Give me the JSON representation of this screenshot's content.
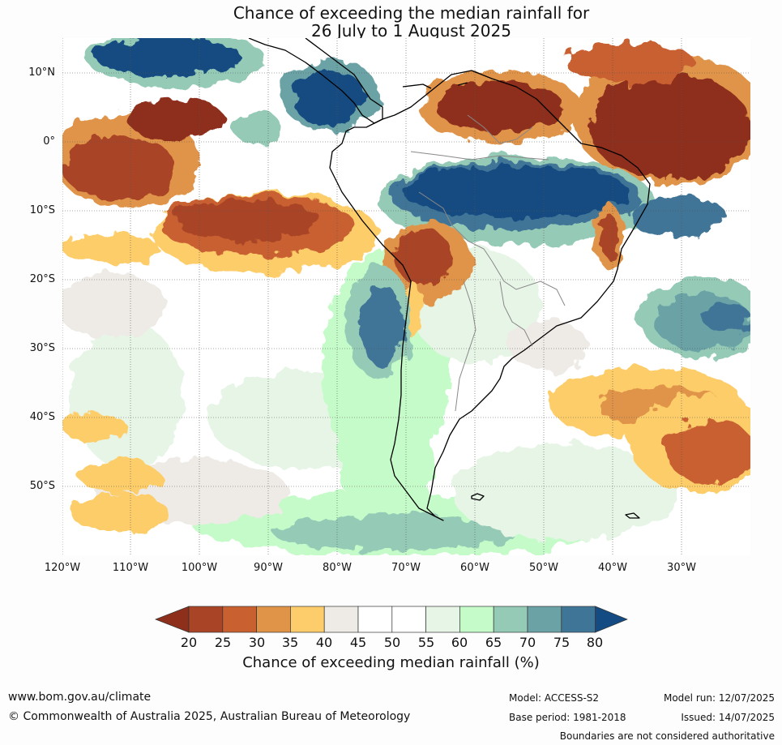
{
  "title": {
    "line1": "Chance of exceeding the median rainfall for",
    "line2": "26 July to 1 August 2025"
  },
  "map": {
    "y_labels": [
      "10°N",
      "0°",
      "10°S",
      "20°S",
      "30°S",
      "40°S",
      "50°S"
    ],
    "x_labels": [
      "120°W",
      "110°W",
      "100°W",
      "90°W",
      "80°W",
      "70°W",
      "60°W",
      "50°W",
      "40°W",
      "30°W"
    ],
    "gridlines": "dotted",
    "background_colour": "#ffffff"
  },
  "colorbar": {
    "title": "Chance of exceeding median rainfall (%)",
    "ticks": [
      "20",
      "25",
      "30",
      "35",
      "40",
      "45",
      "50",
      "55",
      "60",
      "65",
      "70",
      "75",
      "80"
    ],
    "colors": {
      "under": "#8e2f1c",
      "c20_25": "#a94426",
      "c25_30": "#c86030",
      "c30_35": "#e09448",
      "c35_40": "#fdcd6b",
      "c40_45": "#eeebe6",
      "c45_50": "#ffffff",
      "c50_55": "#ffffff",
      "c55_60": "#e7f5e7",
      "c60_65": "#c4fbc8",
      "c65_70": "#95cbb6",
      "c70_75": "#6aa2a6",
      "c75_80": "#3f7597",
      "over": "#134b82"
    }
  },
  "footer": {
    "url": "www.bom.gov.au/climate",
    "copyright": "© Commonwealth of Australia 2025, Australian Bureau of Meteorology",
    "model": "Model: ACCESS-S2",
    "model_run": "Model run: 12/07/2025",
    "base_period": "Base period: 1981-2018",
    "issued": "Issued: 14/07/2025",
    "boundaries_note": "Boundaries are not considered authoritative"
  }
}
